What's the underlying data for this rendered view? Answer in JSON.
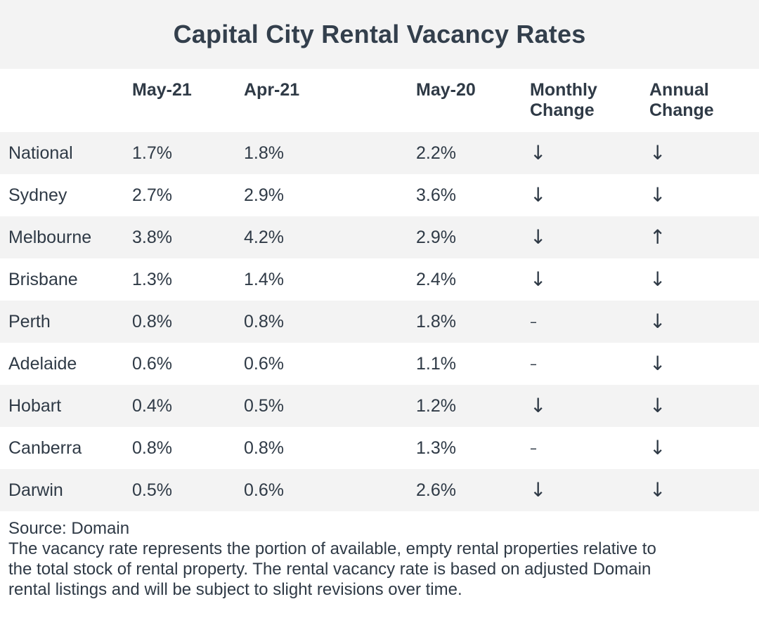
{
  "chart_data": {
    "type": "table",
    "title": "Capital City Rental Vacancy Rates",
    "columns": [
      "",
      "May-21",
      "Apr-21",
      "May-20",
      "Monthly\nChange",
      "Annual\nChange"
    ],
    "rows": [
      {
        "city": "National",
        "may21": "1.7%",
        "apr21": "1.8%",
        "may20": "2.2%",
        "monthly": "↓",
        "annual": "↓"
      },
      {
        "city": "Sydney",
        "may21": "2.7%",
        "apr21": "2.9%",
        "may20": "3.6%",
        "monthly": "↓",
        "annual": "↓"
      },
      {
        "city": "Melbourne",
        "may21": "3.8%",
        "apr21": "4.2%",
        "may20": "2.9%",
        "monthly": "↓",
        "annual": "↑"
      },
      {
        "city": "Brisbane",
        "may21": "1.3%",
        "apr21": "1.4%",
        "may20": "2.4%",
        "monthly": "↓",
        "annual": "↓"
      },
      {
        "city": "Perth",
        "may21": "0.8%",
        "apr21": "0.8%",
        "may20": "1.8%",
        "monthly": "–",
        "annual": "↓"
      },
      {
        "city": "Adelaide",
        "may21": "0.6%",
        "apr21": "0.6%",
        "may20": "1.1%",
        "monthly": "–",
        "annual": "↓"
      },
      {
        "city": "Hobart",
        "may21": "0.4%",
        "apr21": "0.5%",
        "may20": "1.2%",
        "monthly": "↓",
        "annual": "↓"
      },
      {
        "city": "Canberra",
        "may21": "0.8%",
        "apr21": "0.8%",
        "may20": "1.3%",
        "monthly": "–",
        "annual": "↓"
      },
      {
        "city": "Darwin",
        "may21": "0.5%",
        "apr21": "0.6%",
        "may20": "2.6%",
        "monthly": "↓",
        "annual": "↓"
      }
    ]
  },
  "footer": {
    "source": "Source: Domain",
    "note_line1": "The vacancy rate represents the portion of available, empty rental properties relative to",
    "note_line2": "the total stock of rental property. The rental vacancy rate is based on adjusted Domain",
    "note_line3": "rental listings and will be subject to slight revisions over time."
  },
  "colors": {
    "shaded_row": "#f3f3f3",
    "text": "#2f3a46"
  }
}
